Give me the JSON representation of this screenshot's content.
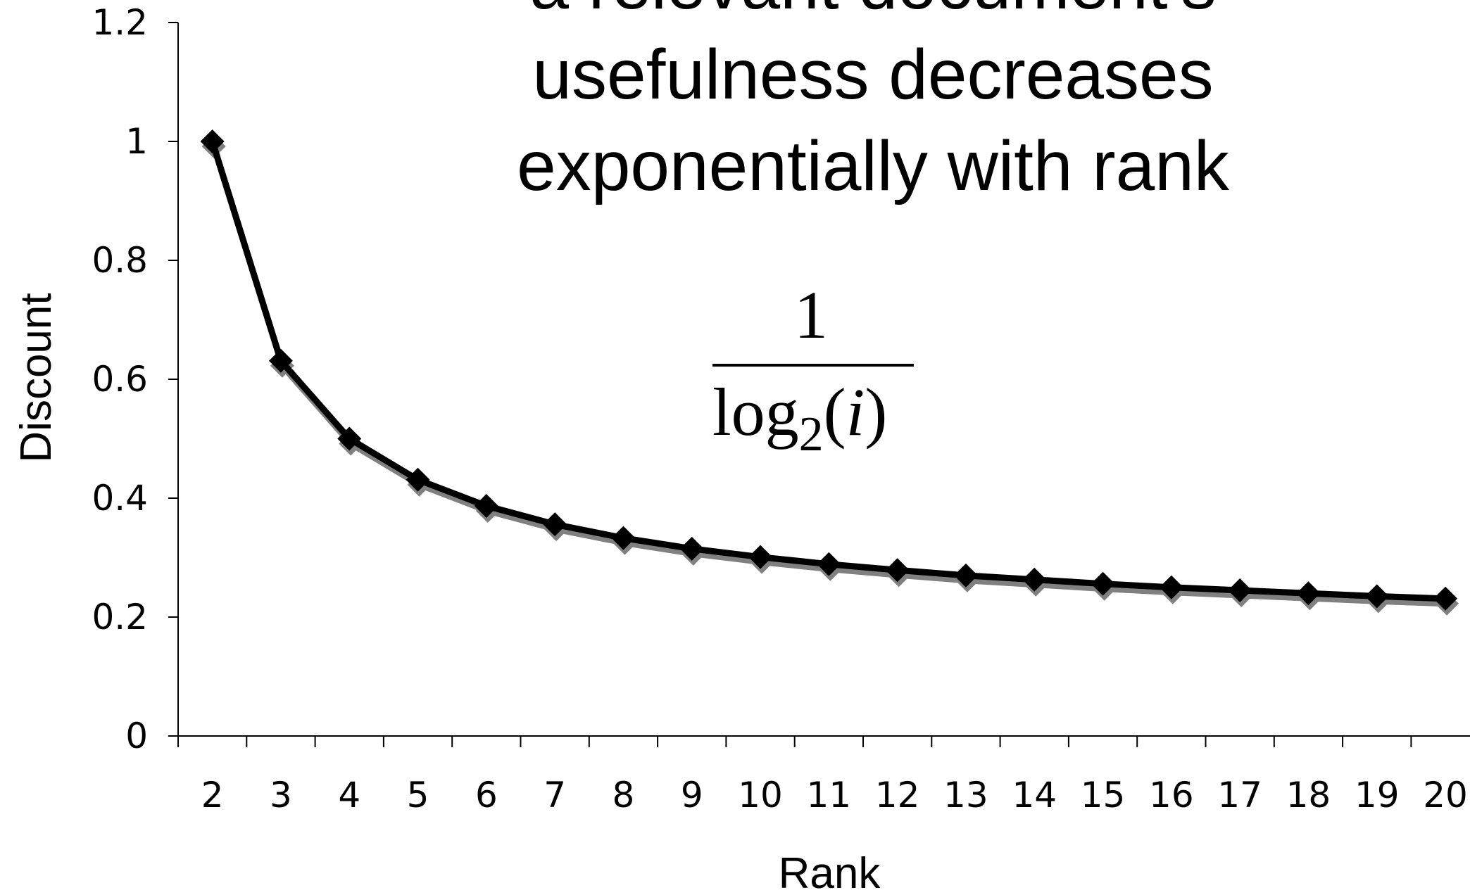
{
  "chart_data": {
    "type": "line",
    "title": "",
    "xlabel": "Rank",
    "ylabel": "Discount",
    "x": [
      2,
      3,
      4,
      5,
      6,
      7,
      8,
      9,
      10,
      11,
      12,
      13,
      14,
      15,
      16,
      17,
      18,
      19,
      20
    ],
    "series": [
      {
        "values": [
          1.0,
          0.631,
          0.5,
          0.431,
          0.387,
          0.356,
          0.333,
          0.315,
          0.301,
          0.289,
          0.279,
          0.27,
          0.263,
          0.256,
          0.25,
          0.245,
          0.24,
          0.235,
          0.231
        ]
      }
    ],
    "ylim": [
      0,
      1.2
    ],
    "yticks": [
      "0",
      "0.2",
      "0.4",
      "0.6",
      "0.8",
      "1",
      "1.2"
    ],
    "xticks": [
      "2",
      "3",
      "4",
      "5",
      "6",
      "7",
      "8",
      "9",
      "10",
      "11",
      "12",
      "13",
      "14",
      "15",
      "16",
      "17",
      "18",
      "19",
      "20"
    ],
    "grid": false,
    "marker": "diamond",
    "line_color": "#000000",
    "shadow_color": "#808080",
    "annotation_lines": [
      "a relevant document's",
      "usefulness decreases",
      "exponentially with rank"
    ],
    "formula": {
      "numerator": "1",
      "log": "log",
      "subscript": "2",
      "open_paren": "(",
      "var": "i",
      "close_paren": ")"
    }
  }
}
